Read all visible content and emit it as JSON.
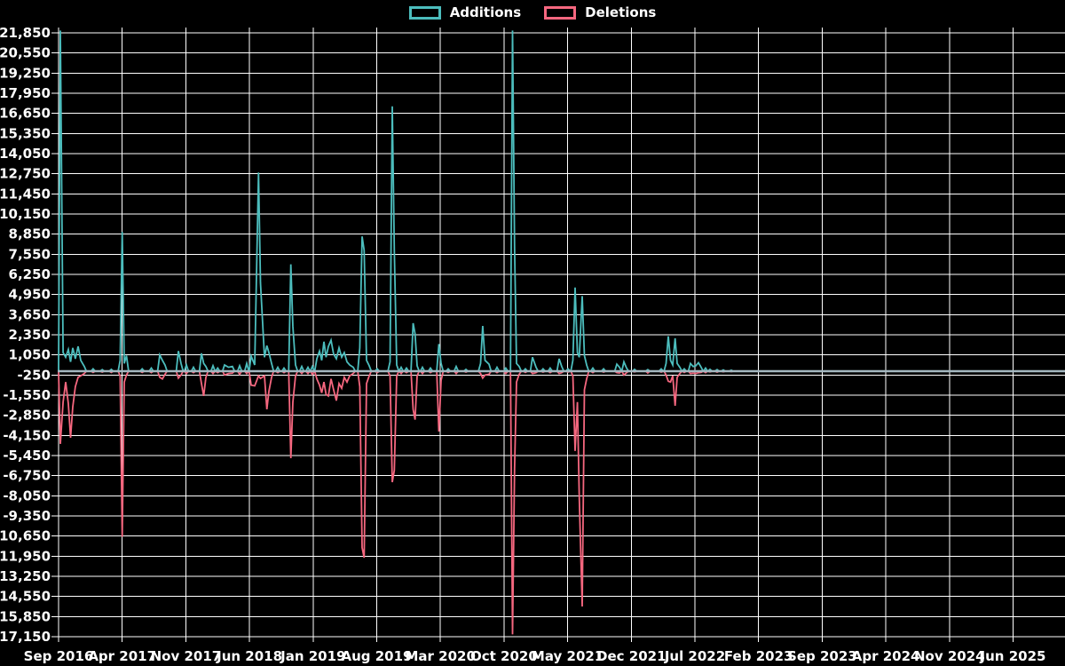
{
  "chart_data": {
    "type": "line",
    "title": "",
    "legend": [
      {
        "name": "Additions",
        "color": "#4cbdbd"
      },
      {
        "name": "Deletions",
        "color": "#f5677f"
      }
    ],
    "background_color": "#000000",
    "grid_color": "#ffffff",
    "text_color": "#ffffff",
    "baseline_color": "#a4b7c0",
    "x_axis": {
      "tick_labels": [
        "Sep 2016",
        "Apr 2017",
        "Nov 2017",
        "Jun 2018",
        "Jan 2019",
        "Aug 2019",
        "Mar 2020",
        "Oct 2020",
        "May 2021",
        "Dec 2021",
        "Jul 2022",
        "Feb 2023",
        "Sep 2023",
        "Apr 2024",
        "Nov 2024",
        "Jun 2025"
      ],
      "months_per_tick": 7,
      "grid": true
    },
    "y_axis": {
      "min": -17150,
      "max": 21850,
      "step": 1300,
      "grid": true
    },
    "series_units": "lines changed per week",
    "points_format": [
      "months_since_Sep_2016",
      "additions",
      "deletions"
    ],
    "points": [
      [
        0,
        0,
        0
      ],
      [
        0.2,
        22000,
        -4700
      ],
      [
        0.5,
        1200,
        -2000
      ],
      [
        0.78,
        900,
        -700
      ],
      [
        1.07,
        1400,
        -2100
      ],
      [
        1.32,
        600,
        -4300
      ],
      [
        1.56,
        1500,
        -2300
      ],
      [
        1.85,
        800,
        -1000
      ],
      [
        2.15,
        1600,
        -400
      ],
      [
        2.44,
        700,
        -300
      ],
      [
        2.83,
        300,
        -150
      ],
      [
        3.8,
        150,
        -80
      ],
      [
        4.8,
        100,
        -60
      ],
      [
        5.8,
        120,
        -80
      ],
      [
        6.78,
        700,
        -300
      ],
      [
        7.0,
        9000,
        -10700
      ],
      [
        7.22,
        500,
        -700
      ],
      [
        7.47,
        1000,
        -250
      ],
      [
        9.2,
        150,
        -80
      ],
      [
        10.2,
        200,
        -100
      ],
      [
        11.13,
        1050,
        -400
      ],
      [
        11.42,
        700,
        -500
      ],
      [
        11.71,
        400,
        -200
      ],
      [
        13.18,
        1300,
        -450
      ],
      [
        13.47,
        500,
        -250
      ],
      [
        14.06,
        400,
        -150
      ],
      [
        14.84,
        250,
        -100
      ],
      [
        15.72,
        1150,
        -800
      ],
      [
        15.96,
        500,
        -1600
      ],
      [
        16.21,
        300,
        -400
      ],
      [
        16.99,
        350,
        -150
      ],
      [
        17.5,
        200,
        -100
      ],
      [
        18.26,
        400,
        -250
      ],
      [
        18.7,
        250,
        -150
      ],
      [
        19.13,
        300,
        -120
      ],
      [
        19.92,
        350,
        -200
      ],
      [
        20.7,
        500,
        -150
      ],
      [
        21.19,
        975,
        -900
      ],
      [
        21.58,
        400,
        -950
      ],
      [
        22.0,
        12830,
        -300
      ],
      [
        22.21,
        5700,
        -470
      ],
      [
        22.65,
        900,
        -300
      ],
      [
        22.91,
        1650,
        -2460
      ],
      [
        23.14,
        1200,
        -1300
      ],
      [
        23.43,
        500,
        -400
      ],
      [
        24.11,
        250,
        -100
      ],
      [
        24.8,
        200,
        -100
      ],
      [
        25.55,
        6900,
        -5620
      ],
      [
        25.77,
        2885,
        -2000
      ],
      [
        26.07,
        400,
        -300
      ],
      [
        26.75,
        300,
        -150
      ],
      [
        27.43,
        250,
        -150
      ],
      [
        27.92,
        300,
        -200
      ],
      [
        28.41,
        800,
        -500
      ],
      [
        28.7,
        1300,
        -900
      ],
      [
        28.95,
        700,
        -1400
      ],
      [
        29.19,
        1900,
        -700
      ],
      [
        29.43,
        900,
        -1500
      ],
      [
        29.68,
        1600,
        -1600
      ],
      [
        29.97,
        2000,
        -500
      ],
      [
        30.26,
        1100,
        -1200
      ],
      [
        30.56,
        800,
        -1900
      ],
      [
        30.85,
        1500,
        -800
      ],
      [
        31.14,
        900,
        -1100
      ],
      [
        31.43,
        1200,
        -400
      ],
      [
        31.73,
        600,
        -700
      ],
      [
        32.02,
        400,
        -300
      ],
      [
        32.41,
        250,
        -150
      ],
      [
        33.14,
        1500,
        -1000
      ],
      [
        33.39,
        8700,
        -11400
      ],
      [
        33.61,
        7800,
        -12050
      ],
      [
        33.88,
        700,
        -800
      ],
      [
        34.17,
        350,
        -300
      ],
      [
        35.05,
        150,
        -100
      ],
      [
        36.46,
        600,
        -300
      ],
      [
        36.71,
        17100,
        -7170
      ],
      [
        36.93,
        7800,
        -6400
      ],
      [
        37.2,
        400,
        -300
      ],
      [
        37.68,
        250,
        -150
      ],
      [
        38.27,
        200,
        -100
      ],
      [
        39.0,
        3100,
        -2470
      ],
      [
        39.22,
        2400,
        -3135
      ],
      [
        39.44,
        350,
        -300
      ],
      [
        40.03,
        250,
        -150
      ],
      [
        40.91,
        200,
        -100
      ],
      [
        41.83,
        1750,
        -3900
      ],
      [
        42.08,
        500,
        -600
      ],
      [
        42.86,
        150,
        -80
      ],
      [
        43.74,
        300,
        -150
      ],
      [
        44.81,
        120,
        -60
      ],
      [
        46.42,
        500,
        -150
      ],
      [
        46.66,
        2925,
        -450
      ],
      [
        46.91,
        700,
        -250
      ],
      [
        47.35,
        450,
        -200
      ],
      [
        48.23,
        250,
        -100
      ],
      [
        49.2,
        200,
        -150
      ],
      [
        49.94,
        22000,
        -17000
      ],
      [
        50.16,
        8000,
        -6300
      ],
      [
        50.38,
        500,
        -700
      ],
      [
        50.67,
        300,
        -200
      ],
      [
        51.35,
        150,
        -80
      ],
      [
        52.13,
        900,
        -150
      ],
      [
        52.52,
        250,
        -100
      ],
      [
        53.3,
        150,
        -60
      ],
      [
        54.08,
        200,
        -100
      ],
      [
        55.06,
        800,
        -150
      ],
      [
        55.35,
        300,
        -100
      ],
      [
        56.04,
        150,
        -60
      ],
      [
        56.58,
        700,
        -300
      ],
      [
        56.82,
        5400,
        -5150
      ],
      [
        57.07,
        1200,
        -2000
      ],
      [
        57.28,
        900,
        -8160
      ],
      [
        57.6,
        4850,
        -15200
      ],
      [
        57.85,
        1000,
        -1200
      ],
      [
        58.09,
        400,
        -500
      ],
      [
        58.77,
        200,
        -100
      ],
      [
        59.95,
        150,
        -60
      ],
      [
        61.41,
        450,
        -100
      ],
      [
        61.7,
        250,
        -120
      ],
      [
        62.19,
        600,
        -250
      ],
      [
        62.48,
        200,
        -100
      ],
      [
        63.36,
        120,
        -50
      ],
      [
        64.82,
        100,
        -120
      ],
      [
        66.29,
        150,
        -60
      ],
      [
        66.83,
        500,
        -250
      ],
      [
        67.07,
        2255,
        -650
      ],
      [
        67.32,
        700,
        -700
      ],
      [
        67.56,
        400,
        -300
      ],
      [
        67.82,
        2120,
        -2235
      ],
      [
        68.05,
        500,
        -400
      ],
      [
        68.34,
        250,
        -150
      ],
      [
        68.83,
        150,
        -80
      ],
      [
        69.51,
        500,
        -150
      ],
      [
        69.8,
        300,
        -120
      ],
      [
        70.1,
        350,
        -150
      ],
      [
        70.39,
        550,
        -100
      ],
      [
        70.68,
        250,
        -80
      ],
      [
        71.17,
        200,
        -100
      ],
      [
        71.66,
        120,
        -50
      ],
      [
        72.44,
        100,
        -60
      ],
      [
        73.12,
        80,
        -40
      ],
      [
        74.0,
        60,
        -30
      ],
      [
        110.7,
        0,
        0
      ]
    ]
  }
}
